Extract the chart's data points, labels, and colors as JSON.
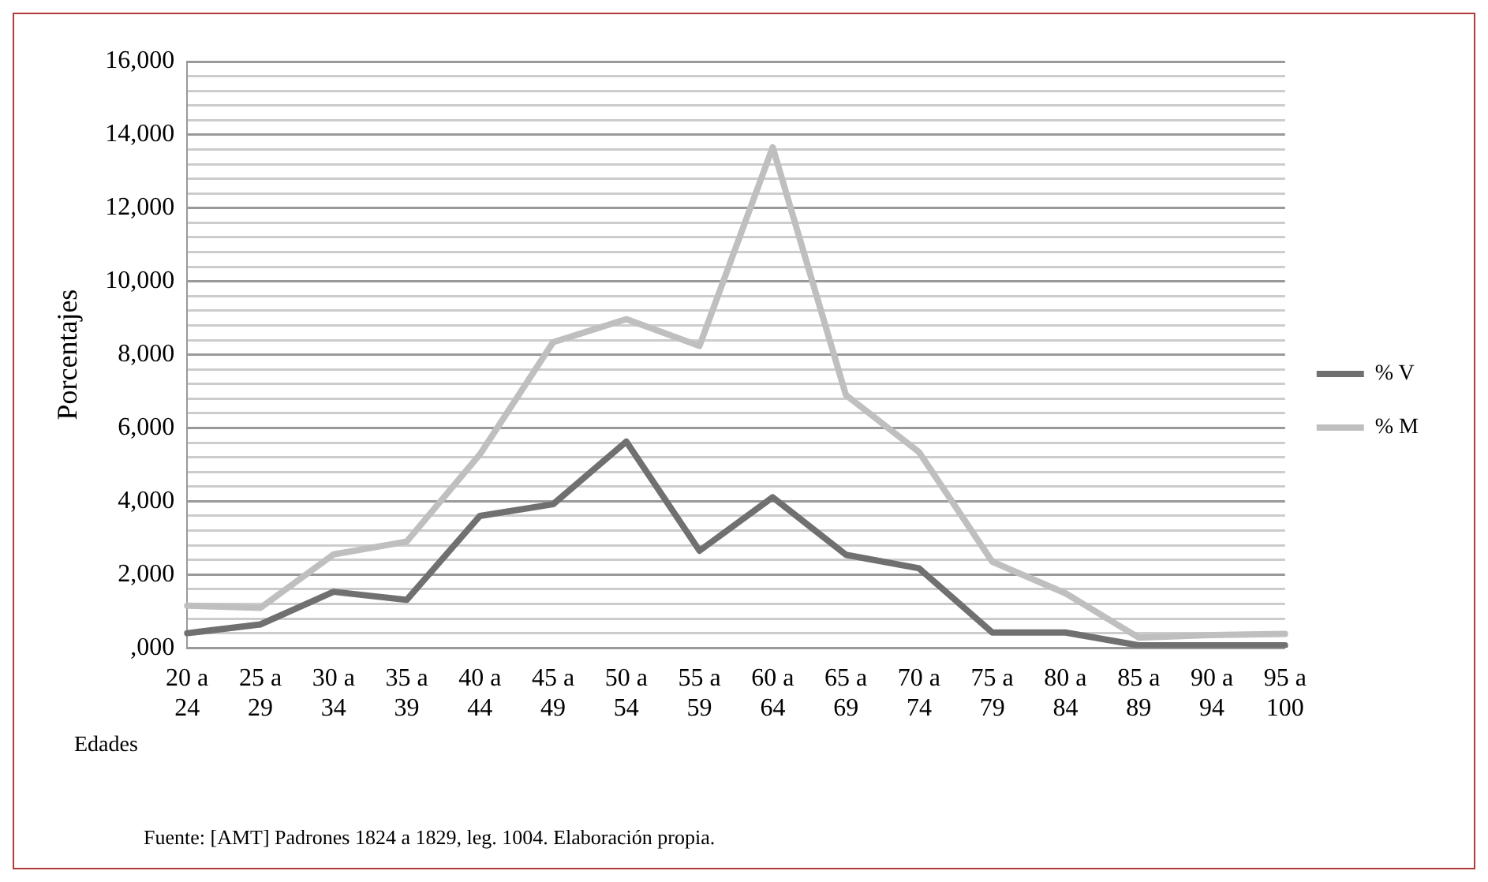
{
  "chart_data": {
    "type": "line",
    "ylabel": "Porcentajes",
    "xlabel": "Edades",
    "categories": [
      "20 a 24",
      "25 a 29",
      "30 a 34",
      "35 a 39",
      "40 a 44",
      "45 a 49",
      "50 a 54",
      "55 a 59",
      "60 a 64",
      "65 a 69",
      "70 a 74",
      "75 a 79",
      "80 a 84",
      "85 a 89",
      "90 a 94",
      "95 a 100"
    ],
    "series": [
      {
        "name": "% V",
        "color": "#707070",
        "values": [
          400,
          640,
          1530,
          1310,
          3600,
          3920,
          5630,
          2650,
          4110,
          2540,
          2170,
          420,
          420,
          70,
          70,
          70
        ]
      },
      {
        "name": "% M",
        "color": "#bfbfbf",
        "values": [
          1150,
          1090,
          2550,
          2900,
          5280,
          8340,
          8970,
          8240,
          13660,
          6900,
          5340,
          2350,
          1490,
          280,
          350,
          380
        ]
      }
    ],
    "ylim": [
      0,
      16000
    ],
    "yticks": [
      {
        "value": 0,
        "label": ",000"
      },
      {
        "value": 400,
        "label": null
      },
      {
        "value": 800,
        "label": null
      },
      {
        "value": 1200,
        "label": null
      },
      {
        "value": 1600,
        "label": null
      },
      {
        "value": 2000,
        "label": "2,000"
      },
      {
        "value": 2400,
        "label": null
      },
      {
        "value": 2800,
        "label": null
      },
      {
        "value": 3200,
        "label": null
      },
      {
        "value": 3600,
        "label": null
      },
      {
        "value": 4000,
        "label": "4,000"
      },
      {
        "value": 4400,
        "label": null
      },
      {
        "value": 4800,
        "label": null
      },
      {
        "value": 5200,
        "label": null
      },
      {
        "value": 5600,
        "label": null
      },
      {
        "value": 6000,
        "label": "6,000"
      },
      {
        "value": 6400,
        "label": null
      },
      {
        "value": 6800,
        "label": null
      },
      {
        "value": 7200,
        "label": null
      },
      {
        "value": 7600,
        "label": null
      },
      {
        "value": 8000,
        "label": "8,000"
      },
      {
        "value": 8400,
        "label": null
      },
      {
        "value": 8800,
        "label": null
      },
      {
        "value": 9200,
        "label": null
      },
      {
        "value": 9600,
        "label": null
      },
      {
        "value": 10000,
        "label": "10,000"
      },
      {
        "value": 10400,
        "label": null
      },
      {
        "value": 10800,
        "label": null
      },
      {
        "value": 11200,
        "label": null
      },
      {
        "value": 11600,
        "label": null
      },
      {
        "value": 12000,
        "label": "12,000"
      },
      {
        "value": 12400,
        "label": null
      },
      {
        "value": 12800,
        "label": null
      },
      {
        "value": 13200,
        "label": null
      },
      {
        "value": 13600,
        "label": null
      },
      {
        "value": 14000,
        "label": "14,000"
      },
      {
        "value": 14400,
        "label": null
      },
      {
        "value": 14800,
        "label": null
      },
      {
        "value": 15200,
        "label": null
      },
      {
        "value": 15600,
        "label": null
      },
      {
        "value": 16000,
        "label": "16,000"
      }
    ],
    "grid": "y",
    "legend": "right",
    "marker": "none",
    "line_style": "solid",
    "annotations": [
      "Fuente: [AMT] Padrones 1824 a 1829, leg. 1004. Elaboración propia."
    ]
  }
}
